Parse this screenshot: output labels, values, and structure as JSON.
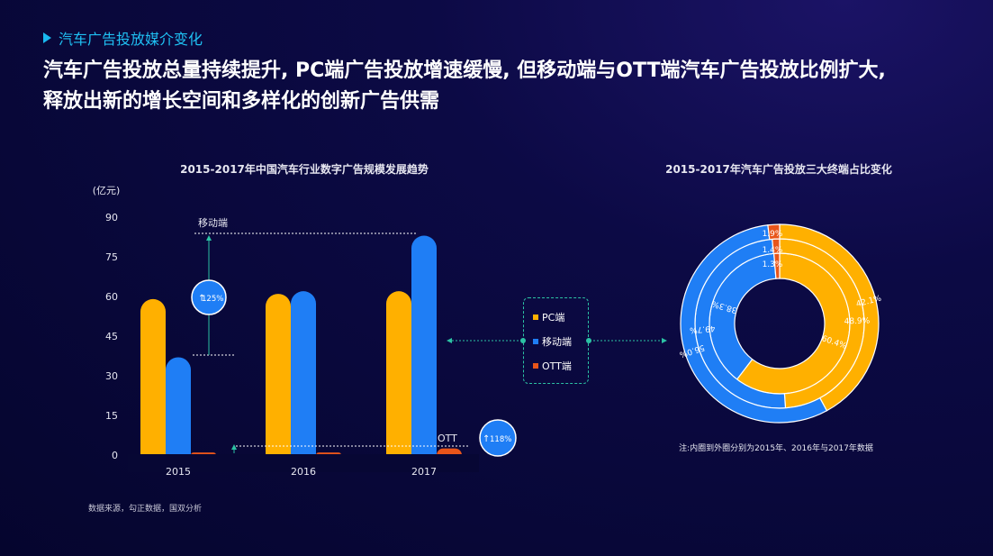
{
  "header": {
    "section_label": "汽车广告投放媒介变化",
    "headline_line1": "汽车广告投放总量持续提升, PC端广告投放增速缓慢, 但移动端与OTT端汽车广告投放比例扩大,",
    "headline_line2": "释放出新的增长空间和多样化的创新广告供需"
  },
  "colors": {
    "pc": "#ffb000",
    "mobile": "#1f7ef5",
    "ott": "#e8551a",
    "accent": "#2cc2a4"
  },
  "legend": {
    "items": [
      "PC端",
      "移动端",
      "OTT端"
    ]
  },
  "footer": {
    "source": "数据来源，勾正数据，国双分析"
  },
  "chart_data": [
    {
      "type": "bar",
      "title": "2015-2017年中国汽车行业数字广告规模发展趋势",
      "unit": "(亿元)",
      "categories": [
        "2015",
        "2016",
        "2017"
      ],
      "series": [
        {
          "name": "PC端",
          "values": [
            59,
            61,
            62
          ]
        },
        {
          "name": "移动端",
          "values": [
            37,
            62,
            83
          ]
        },
        {
          "name": "OTT端",
          "values": [
            1,
            1,
            2.5
          ]
        }
      ],
      "ylim": [
        0,
        90
      ],
      "yticks": [
        0,
        15,
        30,
        45,
        60,
        75,
        90
      ],
      "annotations": [
        {
          "label": "移动端",
          "growth": "125%"
        },
        {
          "label": "OTT",
          "growth": "118%"
        }
      ]
    },
    {
      "type": "pie",
      "title": "2015-2017年汽车广告投放三大终端占比变化",
      "note": "注:内圈到外圈分别为2015年、2016年与2017年数据",
      "rings": [
        {
          "year": "2015",
          "values": [
            60.4,
            38.3,
            1.3
          ],
          "labels": [
            "60.4%",
            "38.3%",
            "1.3%"
          ]
        },
        {
          "year": "2016",
          "values": [
            48.9,
            49.7,
            1.4
          ],
          "labels": [
            "48.9%",
            "49.7%",
            "1.4%"
          ]
        },
        {
          "year": "2017",
          "values": [
            42.1,
            56.0,
            1.9
          ],
          "labels": [
            "42.1%",
            "56.0%",
            "1.9%"
          ]
        }
      ]
    }
  ]
}
